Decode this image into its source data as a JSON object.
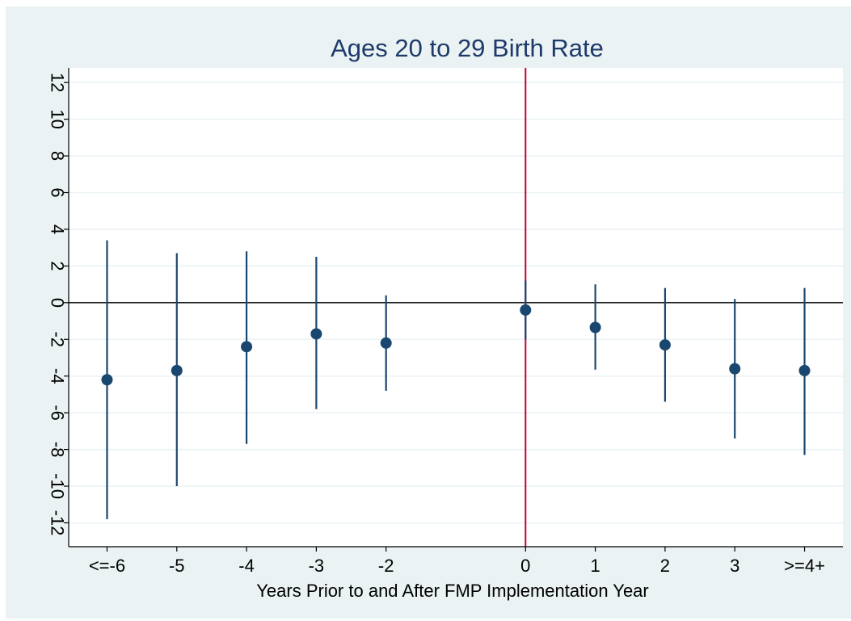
{
  "chart_data": {
    "type": "scatter",
    "title": "Ages 20 to 29 Birth Rate",
    "xlabel": "Years Prior to and After FMP Implementation Year",
    "ylabel": "",
    "categories": [
      "<=-6",
      "-5",
      "-4",
      "-3",
      "-2",
      "0",
      "1",
      "2",
      "3",
      ">=4+"
    ],
    "x": [
      -6,
      -5,
      -4,
      -3,
      -2,
      0,
      1,
      2,
      3,
      4
    ],
    "ylim": [
      -13.3,
      12.8
    ],
    "yticks": [
      -12,
      -10,
      -8,
      -6,
      -4,
      -2,
      0,
      2,
      4,
      6,
      8,
      10,
      12
    ],
    "ytick_labels": [
      "-12",
      "-10",
      "-8",
      "-6",
      "-4",
      "-2",
      "0",
      "2",
      "4",
      "6",
      "8",
      "10",
      "12"
    ],
    "grid": true,
    "reference_lines": {
      "horizontal_y": 0,
      "vertical_x": 0
    },
    "series": [
      {
        "estimate": [
          -4.2,
          -3.7,
          -2.4,
          -1.7,
          -2.2,
          -0.4,
          -1.35,
          -2.3,
          -3.6,
          -3.7
        ],
        "ci_lower": [
          -11.8,
          -10.0,
          -7.7,
          -5.8,
          -4.8,
          -2.0,
          -3.65,
          -5.4,
          -7.4,
          -8.3
        ],
        "ci_upper": [
          3.4,
          2.7,
          2.8,
          2.5,
          0.4,
          1.2,
          1.0,
          0.8,
          0.2,
          0.8
        ]
      }
    ],
    "colors": {
      "frame_background": "#eaf2f3",
      "plot_background": "#ffffff",
      "gridline": "#eaf2f3",
      "marker": "#1a476f",
      "ci_line": "#1a476f",
      "vertical_reference": "#c10534",
      "zero_line": "#000000",
      "title": "#1e3a6b",
      "text": "#000000"
    }
  }
}
